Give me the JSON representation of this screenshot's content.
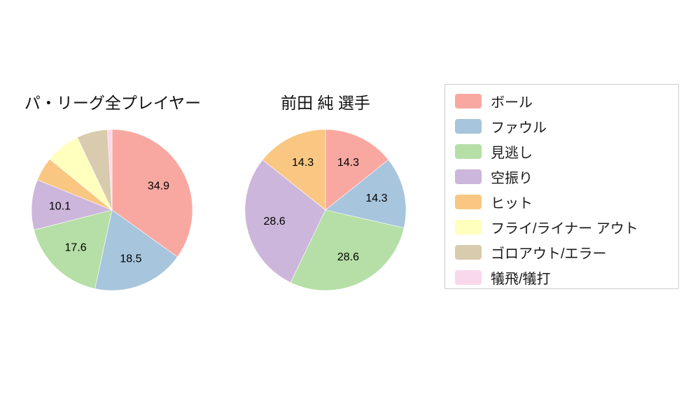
{
  "chart_data": [
    {
      "type": "pie",
      "title": "パ・リーグ全プレイヤー",
      "labels": [
        "ボール",
        "ファウル",
        "見逃し",
        "空振り",
        "ヒット",
        "フライ/ライナー アウト",
        "ゴロアウト/エラー",
        "犠飛/犠打"
      ],
      "values": [
        34.9,
        18.5,
        17.6,
        10.1,
        4.8,
        7.0,
        6.2,
        0.9
      ],
      "start_angle_deg": 0,
      "direction": "clockwise",
      "label_threshold": 10,
      "shown_labels": [
        "34.9",
        "18.5",
        "17.6",
        "10.1"
      ],
      "radius": 115
    },
    {
      "type": "pie",
      "title": "前田 純 選手",
      "labels": [
        "ボール",
        "ファウル",
        "見逃し",
        "空振り",
        "ヒット",
        "フライ/ライナー アウト",
        "ゴロアウト/エラー",
        "犠飛/犠打"
      ],
      "values": [
        14.3,
        14.3,
        28.6,
        28.6,
        14.3,
        0,
        0,
        0
      ],
      "start_angle_deg": 0,
      "direction": "clockwise",
      "label_threshold": 10,
      "shown_labels": [
        "14.3",
        "14.3",
        "28.6",
        "28.6",
        "14.3"
      ],
      "radius": 115
    }
  ],
  "legend": {
    "position": "right",
    "items": [
      {
        "label": "ボール",
        "color": "#F9A8A1"
      },
      {
        "label": "ファウル",
        "color": "#A7C5DC"
      },
      {
        "label": "見逃し",
        "color": "#B5DFA6"
      },
      {
        "label": "空振り",
        "color": "#CCB6DB"
      },
      {
        "label": "ヒット",
        "color": "#F9C781"
      },
      {
        "label": "フライ/ライナー アウト",
        "color": "#FFFFBE"
      },
      {
        "label": "ゴロアウト/エラー",
        "color": "#D8CBAE"
      },
      {
        "label": "犠飛/犠打",
        "color": "#FAD8EB"
      }
    ]
  },
  "style": {
    "value_label_color": "#000000",
    "slice_edge_color": "#ffffff",
    "background": "#ffffff"
  }
}
